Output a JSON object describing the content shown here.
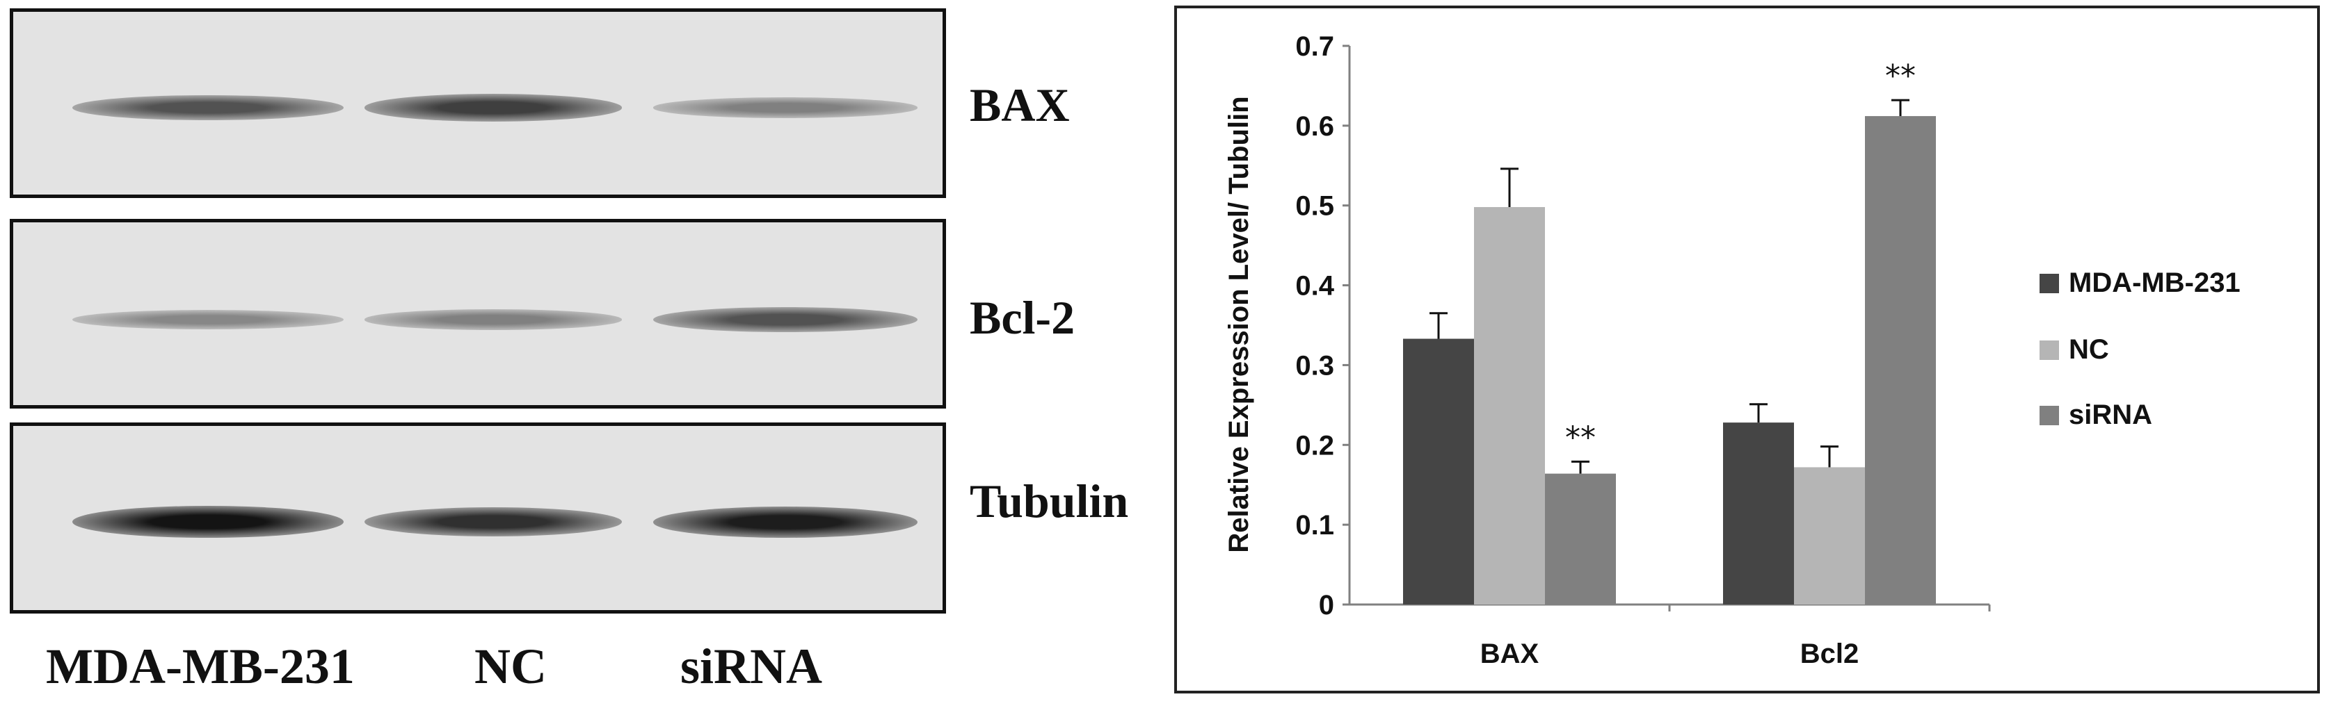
{
  "blot": {
    "panels": [
      {
        "label": "BAX"
      },
      {
        "label": "Bcl-2"
      },
      {
        "label": "Tubulin"
      }
    ],
    "lanes": [
      "MDA-MB-231",
      "NC",
      "siRNA"
    ],
    "band_intensity": [
      [
        0.62,
        0.72,
        0.38
      ],
      [
        0.34,
        0.38,
        0.62
      ],
      [
        0.95,
        0.8,
        0.9
      ]
    ]
  },
  "chart_data": {
    "type": "bar",
    "categories": [
      "BAX",
      "Bcl2"
    ],
    "series": [
      {
        "name": "MDA-MB-231",
        "values": [
          0.333,
          0.228
        ],
        "errors": [
          0.032,
          0.023
        ],
        "color": "#454545"
      },
      {
        "name": "NC",
        "values": [
          0.498,
          0.172
        ],
        "errors": [
          0.048,
          0.026
        ],
        "color": "#b5b5b5"
      },
      {
        "name": "siRNA",
        "values": [
          0.164,
          0.612
        ],
        "errors": [
          0.015,
          0.02
        ],
        "color": "#808080"
      }
    ],
    "significance": [
      {
        "category": "BAX",
        "series": "siRNA",
        "mark": "**"
      },
      {
        "category": "Bcl2",
        "series": "siRNA",
        "mark": "**"
      }
    ],
    "ylabel": "Relative Expression Level/ Tubulin",
    "xlabel": "",
    "ylim": [
      0,
      0.7
    ],
    "yticks": [
      "0",
      "0.1",
      "0.2",
      "0.3",
      "0.4",
      "0.5",
      "0.6",
      "0.7"
    ],
    "legend_position": "right",
    "grid": false
  }
}
